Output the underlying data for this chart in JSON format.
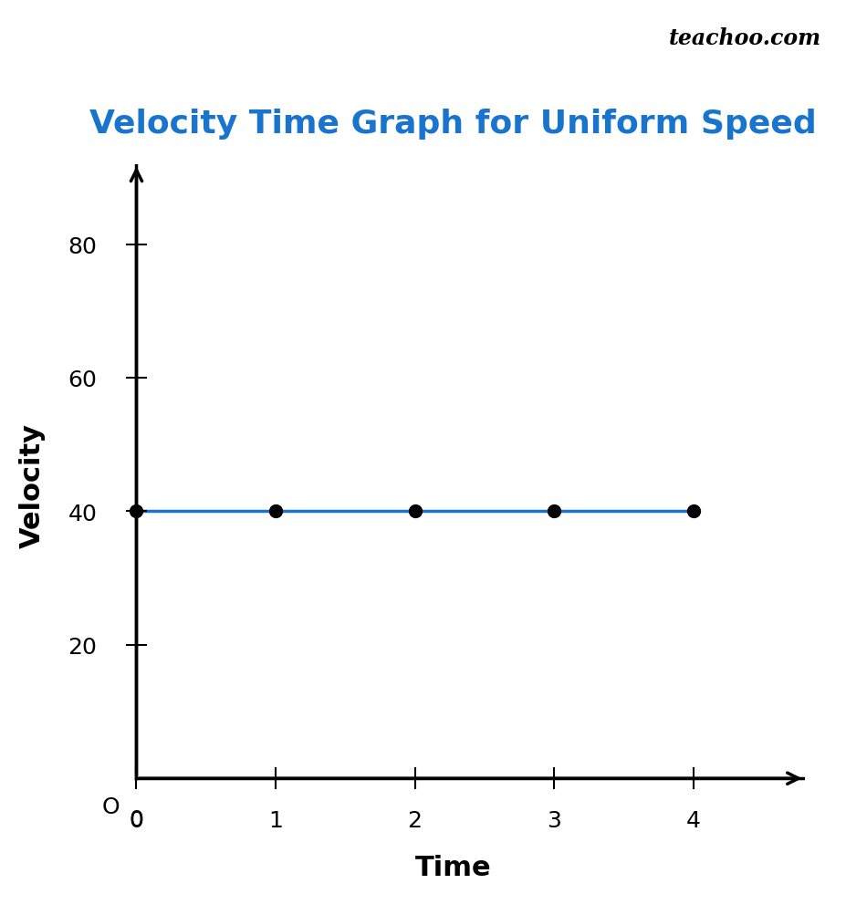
{
  "title": "Velocity Time Graph for Uniform Speed",
  "title_color": "#1874CD",
  "title_fontsize": 26,
  "watermark": "teachoo.com",
  "watermark_fontsize": 17,
  "xlabel": "Time",
  "ylabel": "Velocity",
  "xlabel_fontsize": 22,
  "ylabel_fontsize": 22,
  "x_data": [
    0,
    1,
    2,
    3,
    4
  ],
  "y_data": [
    40,
    40,
    40,
    40,
    40
  ],
  "line_color": "#1874CD",
  "line_width": 2.5,
  "marker_color": "black",
  "marker_size": 10,
  "xlim_min": -0.25,
  "xlim_max": 4.8,
  "ylim_min": -4,
  "ylim_max": 92,
  "xticks": [
    0,
    1,
    2,
    3,
    4
  ],
  "yticks": [
    20,
    40,
    60,
    80
  ],
  "tick_fontsize": 18,
  "axis_lw": 2.5,
  "background_color": "#ffffff",
  "origin_label": "O"
}
